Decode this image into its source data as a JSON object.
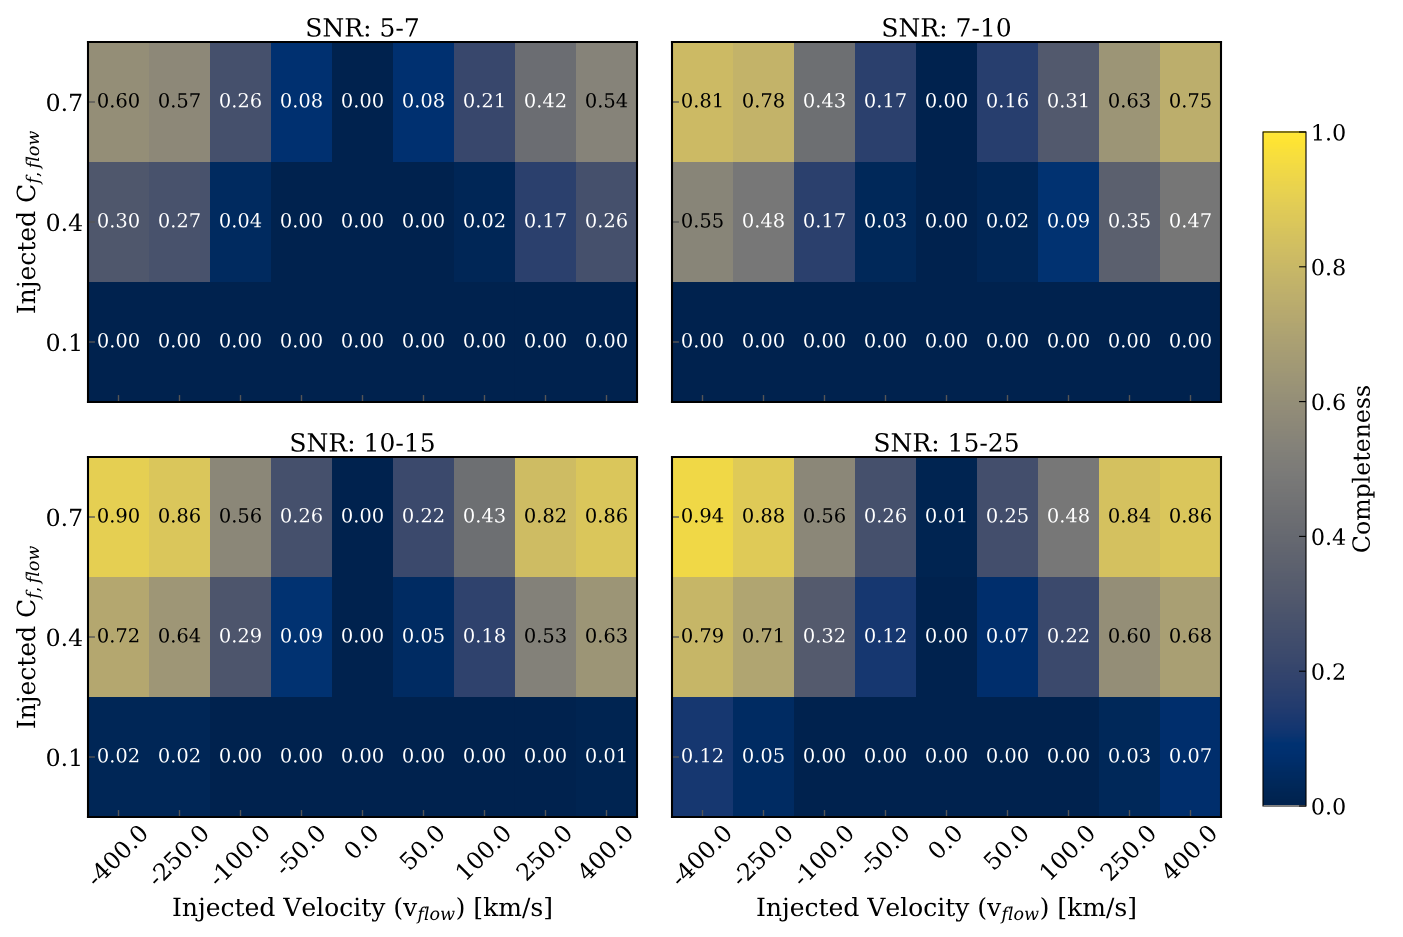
{
  "chart_data": [
    {
      "type": "heatmap",
      "title": "SNR: 5-7",
      "ylabel": "Injected C$_{f,flow}$",
      "tick_labels": "y",
      "categories": [
        "-400.0",
        "-250.0",
        "-100.0",
        "-50.0",
        "0.0",
        "50.0",
        "100.0",
        "250.0",
        "400.0"
      ],
      "y_categories": [
        "0.7",
        "0.4",
        "0.1"
      ],
      "cells": [
        [
          0.6,
          0.57,
          0.26,
          0.08,
          0.0,
          0.08,
          0.21,
          0.42,
          0.54
        ],
        [
          0.3,
          0.27,
          0.04,
          0.0,
          0.0,
          0.0,
          0.02,
          0.17,
          0.26
        ],
        [
          0.0,
          0.0,
          0.0,
          0.0,
          0.0,
          0.0,
          0.0,
          0.0,
          0.0
        ]
      ],
      "cell_labels": [
        [
          "0.60",
          "0.57",
          "0.26",
          "0.08",
          "0.00",
          "0.08",
          "0.21",
          "0.42",
          "0.54"
        ],
        [
          "0.30",
          "0.27",
          "0.04",
          "0.00",
          "0.00",
          "0.00",
          "0.02",
          "0.17",
          "0.26"
        ],
        [
          "0.00",
          "0.00",
          "0.00",
          "0.00",
          "0.00",
          "0.00",
          "0.00",
          "0.00",
          "0.00"
        ]
      ]
    },
    {
      "type": "heatmap",
      "title": "SNR: 7-10",
      "tick_labels": false,
      "categories": [
        "-400.0",
        "-250.0",
        "-100.0",
        "-50.0",
        "0.0",
        "50.0",
        "100.0",
        "250.0",
        "400.0"
      ],
      "y_categories": [
        "0.7",
        "0.4",
        "0.1"
      ],
      "cells": [
        [
          0.81,
          0.78,
          0.43,
          0.17,
          0.0,
          0.16,
          0.31,
          0.63,
          0.75
        ],
        [
          0.55,
          0.48,
          0.17,
          0.03,
          0.0,
          0.02,
          0.09,
          0.35,
          0.47
        ],
        [
          0.0,
          0.0,
          0.0,
          0.0,
          0.0,
          0.0,
          0.0,
          0.0,
          0.0
        ]
      ],
      "cell_labels": [
        [
          "0.81",
          "0.78",
          "0.43",
          "0.17",
          "0.00",
          "0.16",
          "0.31",
          "0.63",
          "0.75"
        ],
        [
          "0.55",
          "0.48",
          "0.17",
          "0.03",
          "0.00",
          "0.02",
          "0.09",
          "0.35",
          "0.47"
        ],
        [
          "0.00",
          "0.00",
          "0.00",
          "0.00",
          "0.00",
          "0.00",
          "0.00",
          "0.00",
          "0.00"
        ]
      ]
    },
    {
      "type": "heatmap",
      "title": "SNR: 10-15",
      "xlabel": "Injected Velocity (v$_{flow}$) [km/s]",
      "ylabel": "Injected C$_{f,flow}$",
      "categories": [
        "-400.0",
        "-250.0",
        "-100.0",
        "-50.0",
        "0.0",
        "50.0",
        "100.0",
        "250.0",
        "400.0"
      ],
      "y_categories": [
        "0.7",
        "0.4",
        "0.1"
      ],
      "cells": [
        [
          0.9,
          0.86,
          0.56,
          0.26,
          0.0,
          0.22,
          0.43,
          0.82,
          0.86
        ],
        [
          0.72,
          0.64,
          0.29,
          0.09,
          0.0,
          0.05,
          0.18,
          0.53,
          0.63
        ],
        [
          0.02,
          0.02,
          0.0,
          0.0,
          0.0,
          0.0,
          0.0,
          0.0,
          0.01
        ]
      ],
      "cell_labels": [
        [
          "0.90",
          "0.86",
          "0.56",
          "0.26",
          "0.00",
          "0.22",
          "0.43",
          "0.82",
          "0.86"
        ],
        [
          "0.72",
          "0.64",
          "0.29",
          "0.09",
          "0.00",
          "0.05",
          "0.18",
          "0.53",
          "0.63"
        ],
        [
          "0.02",
          "0.02",
          "0.00",
          "0.00",
          "0.00",
          "0.00",
          "0.00",
          "0.00",
          "0.01"
        ]
      ]
    },
    {
      "type": "heatmap",
      "title": "SNR: 15-25",
      "xlabel": "Injected Velocity (v$_{flow}$) [km/s]",
      "tick_labels": "x",
      "categories": [
        "-400.0",
        "-250.0",
        "-100.0",
        "-50.0",
        "0.0",
        "50.0",
        "100.0",
        "250.0",
        "400.0"
      ],
      "y_categories": [
        "0.7",
        "0.4",
        "0.1"
      ],
      "clim": [
        0,
        1
      ],
      "clabel": "Completeness",
      "cticks": [
        {
          "value": 0,
          "label": "0.0"
        },
        {
          "value": 0.2,
          "label": "0.2"
        },
        {
          "value": 0.4,
          "label": "0.4"
        },
        {
          "value": 0.6,
          "label": "0.6"
        },
        {
          "value": 0.8,
          "label": "0.8"
        },
        {
          "value": 1,
          "label": "1.0"
        }
      ],
      "cells": [
        [
          0.94,
          0.88,
          0.56,
          0.26,
          0.01,
          0.25,
          0.48,
          0.84,
          0.86
        ],
        [
          0.79,
          0.71,
          0.32,
          0.12,
          0.0,
          0.07,
          0.22,
          0.6,
          0.68
        ],
        [
          0.12,
          0.05,
          0.0,
          0.0,
          0.0,
          0.0,
          0.0,
          0.03,
          0.07
        ]
      ],
      "cell_labels": [
        [
          "0.94",
          "0.88",
          "0.56",
          "0.26",
          "0.01",
          "0.25",
          "0.48",
          "0.84",
          "0.86"
        ],
        [
          "0.79",
          "0.71",
          "0.32",
          "0.12",
          "0.00",
          "0.07",
          "0.22",
          "0.60",
          "0.68"
        ],
        [
          "0.12",
          "0.05",
          "0.00",
          "0.00",
          "0.00",
          "0.00",
          "0.00",
          "0.03",
          "0.07"
        ]
      ]
    }
  ]
}
